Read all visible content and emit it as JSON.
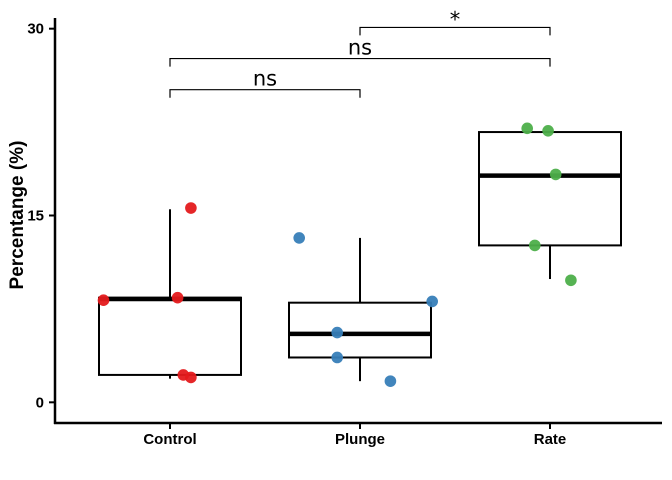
{
  "chart_data": {
    "type": "boxplot",
    "ylabel": "Percentange (%)",
    "xlabel": "",
    "ylim": [
      -1.5,
      31.5
    ],
    "yticks": [
      0,
      15,
      30
    ],
    "categories": [
      "Control",
      "Plunge",
      "Rate"
    ],
    "colors": {
      "Control": "#e41a1c",
      "Plunge": "#377eb8",
      "Rate": "#4daf4a"
    },
    "boxes": [
      {
        "group": "Control",
        "q1": 2.2,
        "median": 8.3,
        "q3": 8.4,
        "whisker_low": 1.9,
        "whisker_high": 15.5
      },
      {
        "group": "Plunge",
        "q1": 3.6,
        "median": 5.5,
        "q3": 8.0,
        "whisker_low": 1.7,
        "whisker_high": 13.2
      },
      {
        "group": "Rate",
        "q1": 12.6,
        "median": 18.2,
        "q3": 21.7,
        "whisker_low": 9.9,
        "whisker_high": 21.7
      }
    ],
    "points": [
      {
        "group": "Control",
        "jitter": -0.35,
        "y": 8.2
      },
      {
        "group": "Control",
        "jitter": 0.04,
        "y": 8.4
      },
      {
        "group": "Control",
        "jitter": 0.11,
        "y": 15.6
      },
      {
        "group": "Control",
        "jitter": 0.07,
        "y": 2.2
      },
      {
        "group": "Control",
        "jitter": 0.11,
        "y": 2.0
      },
      {
        "group": "Plunge",
        "jitter": -0.32,
        "y": 13.2
      },
      {
        "group": "Plunge",
        "jitter": -0.12,
        "y": 3.6
      },
      {
        "group": "Plunge",
        "jitter": -0.12,
        "y": 5.6
      },
      {
        "group": "Plunge",
        "jitter": 0.16,
        "y": 1.7
      },
      {
        "group": "Plunge",
        "jitter": 0.38,
        "y": 8.1
      },
      {
        "group": "Rate",
        "jitter": -0.12,
        "y": 22.0
      },
      {
        "group": "Rate",
        "jitter": -0.01,
        "y": 21.8
      },
      {
        "group": "Rate",
        "jitter": 0.03,
        "y": 18.3
      },
      {
        "group": "Rate",
        "jitter": -0.08,
        "y": 12.6
      },
      {
        "group": "Rate",
        "jitter": 0.11,
        "y": 9.8
      }
    ],
    "comparisons": [
      {
        "from": "Control",
        "to": "Plunge",
        "y": 25.1,
        "label": "ns"
      },
      {
        "from": "Control",
        "to": "Rate",
        "y": 27.6,
        "label": "ns"
      },
      {
        "from": "Plunge",
        "to": "Rate",
        "y": 30.1,
        "label": "*"
      }
    ]
  }
}
